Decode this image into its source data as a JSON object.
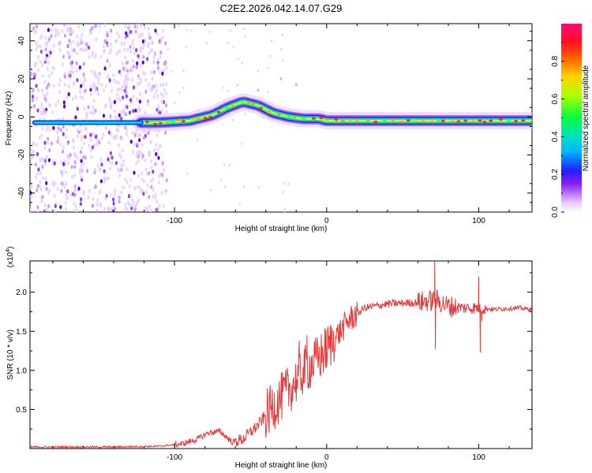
{
  "title": "C2E2.2026.042.14.07.G29",
  "chart_data": [
    {
      "type": "heatmap",
      "name": "spectrogram",
      "xlabel": "Height of straight line (km)",
      "ylabel": "Frequency (Hz)",
      "xlim": [
        -195,
        135
      ],
      "ylim": [
        -50,
        49
      ],
      "xticks": [
        -100,
        0,
        100
      ],
      "yticks": [
        -40,
        -20,
        0,
        20,
        40
      ],
      "xtick_labels": [
        "-100",
        "0",
        "100"
      ],
      "ytick_labels": [
        "-40",
        "-20",
        "0",
        "20",
        "40"
      ],
      "colorbar": {
        "label": "Normalized spectral amplitude",
        "range": [
          0,
          1
        ],
        "ticks": [
          0.0,
          0.2,
          0.4,
          0.6,
          0.8
        ],
        "tick_labels": [
          "0.0",
          "0.2",
          "0.4",
          "0.6",
          "0.8"
        ]
      },
      "ridge": {
        "x": [
          -190,
          -160,
          -130,
          -110,
          -90,
          -75,
          -65,
          -55,
          -45,
          -35,
          -25,
          -15,
          -5,
          0,
          20,
          50,
          80,
          100,
          135
        ],
        "freq_hz": [
          -3,
          -3,
          -3,
          -3,
          -2,
          1,
          5,
          8,
          6,
          2,
          0,
          -1,
          -1,
          -2,
          -2,
          -2,
          -2,
          -2,
          -2
        ]
      },
      "noise_region_x": [
        -195,
        -115
      ]
    },
    {
      "type": "line",
      "name": "snr",
      "xlabel": "Height of straight line (km)",
      "ylabel": "SNR (10 * v/v)",
      "ylabel_multiplier": "(x10",
      "ylabel_multiplier_exp": "4",
      "multiplier_close": ")",
      "xlim": [
        -195,
        135
      ],
      "ylim": [
        0,
        2.4
      ],
      "xticks": [
        -100,
        0,
        100
      ],
      "yticks": [
        0.5,
        1.0,
        1.5,
        2.0
      ],
      "xtick_labels": [
        "-100",
        "0",
        "100"
      ],
      "ytick_labels": [
        "0.5",
        "1.0",
        "1.5",
        "2.0"
      ],
      "color": "#e23c3c",
      "trend": {
        "x": [
          -195,
          -140,
          -110,
          -95,
          -85,
          -78,
          -70,
          -62,
          -55,
          -45,
          -35,
          -25,
          -15,
          -5,
          5,
          15,
          25,
          40,
          60,
          72,
          80,
          90,
          100,
          110,
          125,
          135
        ],
        "y": [
          0.02,
          0.02,
          0.03,
          0.06,
          0.12,
          0.2,
          0.22,
          0.08,
          0.12,
          0.3,
          0.55,
          0.75,
          1.0,
          1.15,
          1.4,
          1.65,
          1.8,
          1.85,
          1.87,
          1.9,
          1.82,
          1.8,
          1.8,
          1.78,
          1.8,
          1.78
        ]
      },
      "spikes": [
        {
          "x": 71,
          "y": 2.4
        },
        {
          "x": 71.5,
          "y": 1.27
        },
        {
          "x": 100,
          "y": 2.2
        },
        {
          "x": 102,
          "y": 1.63
        },
        {
          "x": 101,
          "y": 1.23
        },
        {
          "x": -13,
          "y": 1.45
        },
        {
          "x": -18,
          "y": 1.38
        },
        {
          "x": 12,
          "y": 1.7
        }
      ]
    }
  ]
}
